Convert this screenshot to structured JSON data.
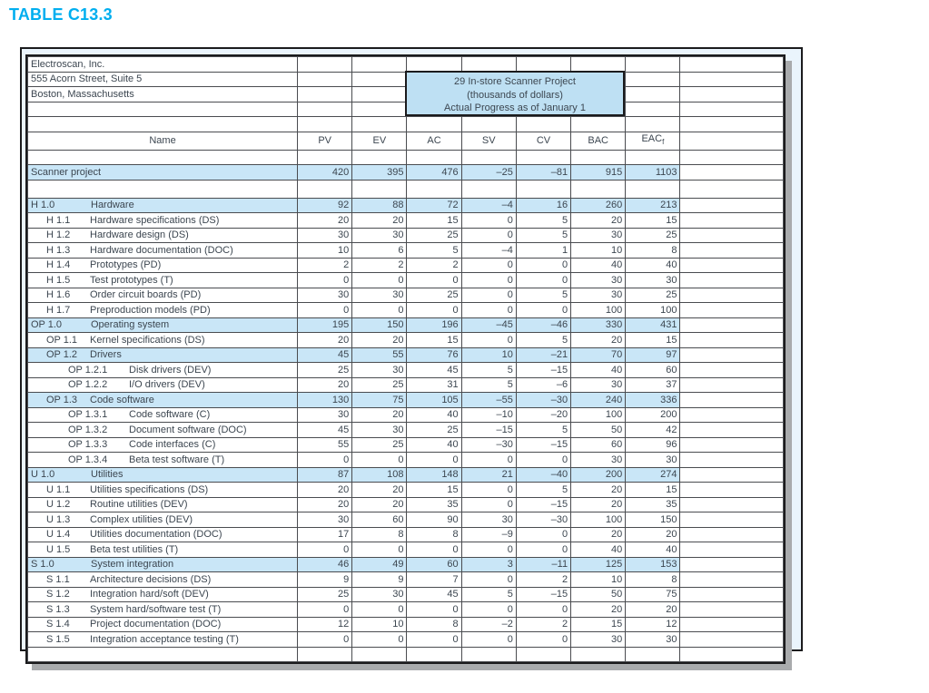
{
  "title": "TABLE C13.3",
  "project_box": {
    "line1": "29 In-store Scanner Project",
    "line2": "(thousands of dollars)",
    "line3": "Actual Progress as of January 1"
  },
  "colors": {
    "title_accent": "#00AEEF",
    "row_highlight": "#C9E6F7",
    "project_box_fill": "#BEE0F3",
    "outer_panel_fill": "#EAF4FC"
  },
  "columns": [
    {
      "key": "name",
      "label": "Name"
    },
    {
      "key": "pv",
      "label": "PV"
    },
    {
      "key": "ev",
      "label": "EV"
    },
    {
      "key": "ac",
      "label": "AC"
    },
    {
      "key": "sv",
      "label": "SV"
    },
    {
      "key": "cv",
      "label": "CV"
    },
    {
      "key": "bac",
      "label": "BAC"
    },
    {
      "key": "eac",
      "label": "EAC",
      "sub": "f"
    }
  ],
  "rows": [
    {
      "type": "text",
      "name": "Electroscan, Inc."
    },
    {
      "type": "text",
      "name": "555 Acorn Street, Suite 5"
    },
    {
      "type": "text",
      "name": "Boston, Massachusetts"
    },
    {
      "type": "blank"
    },
    {
      "type": "blank"
    },
    {
      "type": "header"
    },
    {
      "type": "blank"
    },
    {
      "type": "data",
      "code": "",
      "name": "Scanner project",
      "level": 0,
      "highlight": true,
      "values": [
        "420",
        "395",
        "476",
        "–25",
        "–81",
        "915",
        "1103"
      ]
    },
    {
      "type": "blank",
      "tall": true
    },
    {
      "type": "data",
      "code": "H 1.0",
      "name": "Hardware",
      "level": 1,
      "highlight": true,
      "values": [
        "92",
        "88",
        "72",
        "–4",
        "16",
        "260",
        "213"
      ]
    },
    {
      "type": "data",
      "code": "H 1.1",
      "name": "Hardware specifications (DS)",
      "level": 2,
      "highlight": false,
      "values": [
        "20",
        "20",
        "15",
        "0",
        "5",
        "20",
        "15"
      ]
    },
    {
      "type": "data",
      "code": "H 1.2",
      "name": "Hardware design (DS)",
      "level": 2,
      "highlight": false,
      "values": [
        "30",
        "30",
        "25",
        "0",
        "5",
        "30",
        "25"
      ]
    },
    {
      "type": "data",
      "code": "H 1.3",
      "name": "Hardware documentation (DOC)",
      "level": 2,
      "highlight": false,
      "values": [
        "10",
        "6",
        "5",
        "–4",
        "1",
        "10",
        "8"
      ]
    },
    {
      "type": "data",
      "code": "H 1.4",
      "name": "Prototypes (PD)",
      "level": 2,
      "highlight": false,
      "values": [
        "2",
        "2",
        "2",
        "0",
        "0",
        "40",
        "40"
      ]
    },
    {
      "type": "data",
      "code": "H 1.5",
      "name": "Test prototypes (T)",
      "level": 2,
      "highlight": false,
      "values": [
        "0",
        "0",
        "0",
        "0",
        "0",
        "30",
        "30"
      ]
    },
    {
      "type": "data",
      "code": "H 1.6",
      "name": "Order circuit boards (PD)",
      "level": 2,
      "highlight": false,
      "values": [
        "30",
        "30",
        "25",
        "0",
        "5",
        "30",
        "25"
      ]
    },
    {
      "type": "data",
      "code": "H 1.7",
      "name": "Preproduction models (PD)",
      "level": 2,
      "highlight": false,
      "values": [
        "0",
        "0",
        "0",
        "0",
        "0",
        "100",
        "100"
      ]
    },
    {
      "type": "data",
      "code": "OP 1.0",
      "name": "Operating system",
      "level": 1,
      "highlight": true,
      "values": [
        "195",
        "150",
        "196",
        "–45",
        "–46",
        "330",
        "431"
      ]
    },
    {
      "type": "data",
      "code": "OP 1.1",
      "name": "Kernel specifications (DS)",
      "level": 2,
      "highlight": false,
      "values": [
        "20",
        "20",
        "15",
        "0",
        "5",
        "20",
        "15"
      ]
    },
    {
      "type": "data",
      "code": "OP 1.2",
      "name": "Drivers",
      "level": 2,
      "highlight": true,
      "values": [
        "45",
        "55",
        "76",
        "10",
        "–21",
        "70",
        "97"
      ]
    },
    {
      "type": "data",
      "code": "OP 1.2.1",
      "name": "Disk drivers (DEV)",
      "level": 3,
      "highlight": false,
      "values": [
        "25",
        "30",
        "45",
        "5",
        "–15",
        "40",
        "60"
      ]
    },
    {
      "type": "data",
      "code": "OP 1.2.2",
      "name": "I/O drivers (DEV)",
      "level": 3,
      "highlight": false,
      "values": [
        "20",
        "25",
        "31",
        "5",
        "–6",
        "30",
        "37"
      ]
    },
    {
      "type": "data",
      "code": "OP 1.3",
      "name": "Code software",
      "level": 2,
      "highlight": true,
      "values": [
        "130",
        "75",
        "105",
        "–55",
        "–30",
        "240",
        "336"
      ]
    },
    {
      "type": "data",
      "code": "OP 1.3.1",
      "name": "Code software (C)",
      "level": 3,
      "highlight": false,
      "values": [
        "30",
        "20",
        "40",
        "–10",
        "–20",
        "100",
        "200"
      ]
    },
    {
      "type": "data",
      "code": "OP 1.3.2",
      "name": "Document software (DOC)",
      "level": 3,
      "highlight": false,
      "values": [
        "45",
        "30",
        "25",
        "–15",
        "5",
        "50",
        "42"
      ]
    },
    {
      "type": "data",
      "code": "OP 1.3.3",
      "name": "Code interfaces (C)",
      "level": 3,
      "highlight": false,
      "values": [
        "55",
        "25",
        "40",
        "–30",
        "–15",
        "60",
        "96"
      ]
    },
    {
      "type": "data",
      "code": "OP 1.3.4",
      "name": "Beta test software (T)",
      "level": 3,
      "highlight": false,
      "values": [
        "0",
        "0",
        "0",
        "0",
        "0",
        "30",
        "30"
      ]
    },
    {
      "type": "data",
      "code": "U 1.0",
      "name": "Utilities",
      "level": 1,
      "highlight": true,
      "values": [
        "87",
        "108",
        "148",
        "21",
        "–40",
        "200",
        "274"
      ]
    },
    {
      "type": "data",
      "code": "U 1.1",
      "name": "Utilities specifications (DS)",
      "level": 2,
      "highlight": false,
      "values": [
        "20",
        "20",
        "15",
        "0",
        "5",
        "20",
        "15"
      ]
    },
    {
      "type": "data",
      "code": "U 1.2",
      "name": "Routine utilities (DEV)",
      "level": 2,
      "highlight": false,
      "values": [
        "20",
        "20",
        "35",
        "0",
        "–15",
        "20",
        "35"
      ]
    },
    {
      "type": "data",
      "code": "U 1.3",
      "name": "Complex utilities (DEV)",
      "level": 2,
      "highlight": false,
      "values": [
        "30",
        "60",
        "90",
        "30",
        "–30",
        "100",
        "150"
      ]
    },
    {
      "type": "data",
      "code": "U 1.4",
      "name": "Utilities documentation (DOC)",
      "level": 2,
      "highlight": false,
      "values": [
        "17",
        "8",
        "8",
        "–9",
        "0",
        "20",
        "20"
      ]
    },
    {
      "type": "data",
      "code": "U 1.5",
      "name": "Beta test utilities (T)",
      "level": 2,
      "highlight": false,
      "values": [
        "0",
        "0",
        "0",
        "0",
        "0",
        "40",
        "40"
      ]
    },
    {
      "type": "data",
      "code": "S 1.0",
      "name": "System integration",
      "level": 1,
      "highlight": true,
      "values": [
        "46",
        "49",
        "60",
        "3",
        "–11",
        "125",
        "153"
      ]
    },
    {
      "type": "data",
      "code": "S 1.1",
      "name": "Architecture decisions (DS)",
      "level": 2,
      "highlight": false,
      "values": [
        "9",
        "9",
        "7",
        "0",
        "2",
        "10",
        "8"
      ]
    },
    {
      "type": "data",
      "code": "S 1.2",
      "name": "Integration hard/soft (DEV)",
      "level": 2,
      "highlight": false,
      "values": [
        "25",
        "30",
        "45",
        "5",
        "–15",
        "50",
        "75"
      ]
    },
    {
      "type": "data",
      "code": "S 1.3",
      "name": "System hard/software test (T)",
      "level": 2,
      "highlight": false,
      "values": [
        "0",
        "0",
        "0",
        "0",
        "0",
        "20",
        "20"
      ]
    },
    {
      "type": "data",
      "code": "S 1.4",
      "name": "Project documentation (DOC)",
      "level": 2,
      "highlight": false,
      "values": [
        "12",
        "10",
        "8",
        "–2",
        "2",
        "15",
        "12"
      ]
    },
    {
      "type": "data",
      "code": "S 1.5",
      "name": "Integration acceptance testing (T)",
      "level": 2,
      "highlight": false,
      "values": [
        "0",
        "0",
        "0",
        "0",
        "0",
        "30",
        "30"
      ]
    },
    {
      "type": "blank"
    }
  ]
}
